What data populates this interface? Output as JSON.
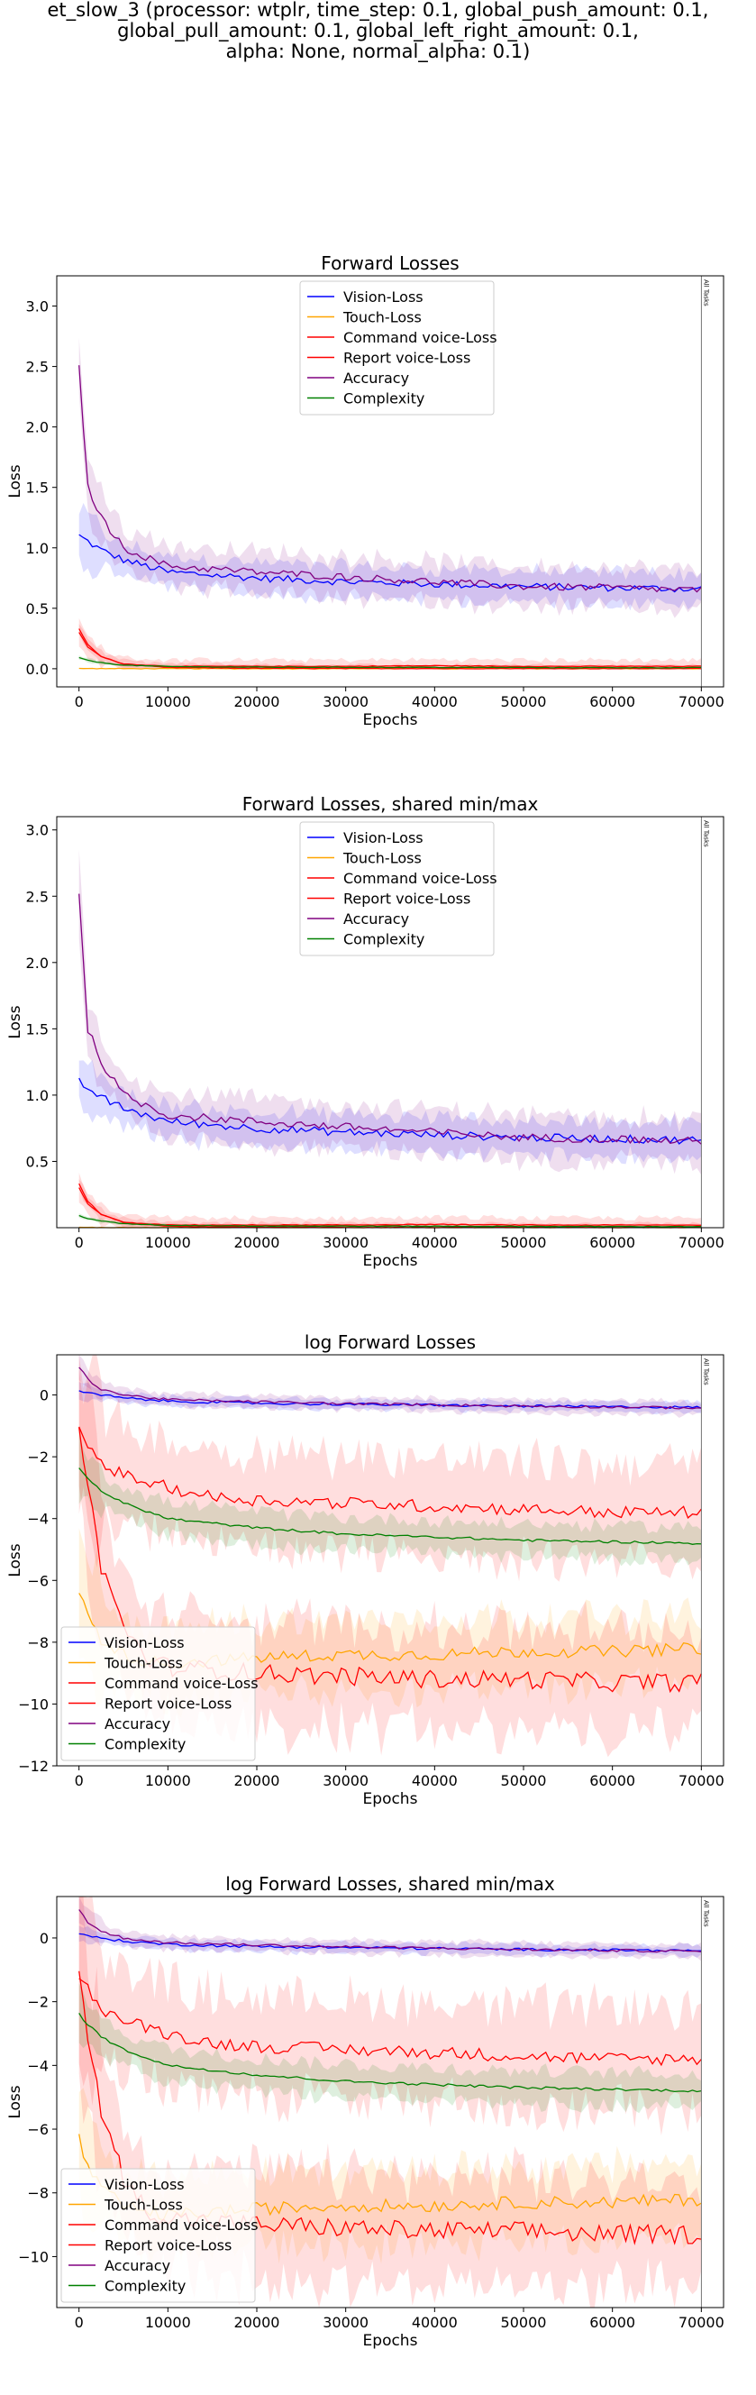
{
  "figure": {
    "title_lines": [
      "et_slow_3 (processor: wtplr, time_step: 0.1, global_push_amount: 0.1,",
      "global_pull_amount: 0.1, global_left_right_amount: 0.1,",
      "alpha: None, normal_alpha: 0.1)"
    ]
  },
  "colors": {
    "Vision-Loss": "#0000ff",
    "Touch-Loss": "#ffa500",
    "Command voice-Loss": "#ff0000",
    "Report voice-Loss": "#ff0000",
    "Accuracy": "#800080",
    "Complexity": "#008000"
  },
  "chart_data": [
    {
      "type": "line",
      "title": "Forward Losses",
      "xlabel": "Epochs",
      "ylabel": "Loss",
      "xlim": [
        -2500,
        72500
      ],
      "ylim": [
        -0.15,
        3.25
      ],
      "xticks": [
        0,
        10000,
        20000,
        30000,
        40000,
        50000,
        60000,
        70000
      ],
      "yticks": [
        0.0,
        0.5,
        1.0,
        1.5,
        2.0,
        2.5,
        3.0
      ],
      "ytick_labels": [
        "0.0",
        "0.5",
        "1.0",
        "1.5",
        "2.0",
        "2.5",
        "3.0"
      ],
      "vline": {
        "x": 70000,
        "label": "All Tasks"
      },
      "legend_position": "top-center",
      "grid": false,
      "series": [
        {
          "name": "Vision-Loss",
          "x": [
            0,
            2500,
            5000,
            10000,
            20000,
            30000,
            40000,
            50000,
            60000,
            70000
          ],
          "y": [
            1.1,
            0.98,
            0.9,
            0.8,
            0.75,
            0.72,
            0.7,
            0.68,
            0.67,
            0.66
          ]
        },
        {
          "name": "Touch-Loss",
          "x": [
            0,
            5000,
            10000,
            20000,
            30000,
            40000,
            50000,
            60000,
            70000
          ],
          "y": [
            0.002,
            0.001,
            0.0005,
            0.0003,
            0.0003,
            0.0003,
            0.0003,
            0.0003,
            0.0003
          ]
        },
        {
          "name": "Command voice-Loss",
          "x": [
            0,
            1000,
            2500,
            5000,
            10000,
            20000,
            30000,
            40000,
            50000,
            60000,
            70000
          ],
          "y": [
            0.33,
            0.2,
            0.1,
            0.04,
            0.01,
            0.004,
            0.002,
            0.0015,
            0.0012,
            0.0012,
            0.0012
          ]
        },
        {
          "name": "Report voice-Loss",
          "x": [
            0,
            1000,
            2500,
            5000,
            10000,
            20000,
            30000,
            40000,
            50000,
            60000,
            70000
          ],
          "y": [
            0.3,
            0.18,
            0.1,
            0.04,
            0.02,
            0.02,
            0.02,
            0.025,
            0.02,
            0.02,
            0.02
          ]
        },
        {
          "name": "Accuracy",
          "x": [
            0,
            1000,
            2500,
            5000,
            10000,
            20000,
            30000,
            40000,
            50000,
            60000,
            70000
          ],
          "y": [
            2.5,
            1.5,
            1.25,
            1.0,
            0.85,
            0.8,
            0.76,
            0.72,
            0.68,
            0.67,
            0.65
          ]
        },
        {
          "name": "Complexity",
          "x": [
            0,
            1000,
            2500,
            5000,
            10000,
            20000,
            30000,
            40000,
            50000,
            60000,
            70000
          ],
          "y": [
            0.09,
            0.07,
            0.05,
            0.03,
            0.018,
            0.013,
            0.012,
            0.011,
            0.01,
            0.009,
            0.009
          ]
        }
      ]
    },
    {
      "type": "line",
      "title": "Forward Losses, shared min/max",
      "xlabel": "Epochs",
      "ylabel": "Loss",
      "xlim": [
        -2500,
        72500
      ],
      "ylim": [
        0.0,
        3.1
      ],
      "xticks": [
        0,
        10000,
        20000,
        30000,
        40000,
        50000,
        60000,
        70000
      ],
      "yticks": [
        0.5,
        1.0,
        1.5,
        2.0,
        2.5,
        3.0
      ],
      "ytick_labels": [
        "0.5",
        "1.0",
        "1.5",
        "2.0",
        "2.5",
        "3.0"
      ],
      "vline": {
        "x": 70000,
        "label": "All Tasks"
      },
      "legend_position": "top-center",
      "grid": false,
      "series": [
        {
          "name": "Vision-Loss",
          "x": [
            0,
            2500,
            5000,
            10000,
            20000,
            30000,
            40000,
            50000,
            60000,
            70000
          ],
          "y": [
            1.1,
            0.98,
            0.9,
            0.8,
            0.75,
            0.72,
            0.7,
            0.68,
            0.67,
            0.66
          ]
        },
        {
          "name": "Touch-Loss",
          "x": [
            0,
            5000,
            10000,
            20000,
            30000,
            40000,
            50000,
            60000,
            70000
          ],
          "y": [
            0.002,
            0.001,
            0.0005,
            0.0003,
            0.0003,
            0.0003,
            0.0003,
            0.0003,
            0.0003
          ]
        },
        {
          "name": "Command voice-Loss",
          "x": [
            0,
            1000,
            2500,
            5000,
            10000,
            20000,
            30000,
            40000,
            50000,
            60000,
            70000
          ],
          "y": [
            0.33,
            0.2,
            0.1,
            0.04,
            0.01,
            0.004,
            0.002,
            0.0015,
            0.0012,
            0.0012,
            0.0012
          ]
        },
        {
          "name": "Report voice-Loss",
          "x": [
            0,
            1000,
            2500,
            5000,
            10000,
            20000,
            30000,
            40000,
            50000,
            60000,
            70000
          ],
          "y": [
            0.3,
            0.18,
            0.1,
            0.04,
            0.02,
            0.02,
            0.02,
            0.025,
            0.02,
            0.02,
            0.02
          ]
        },
        {
          "name": "Accuracy",
          "x": [
            0,
            1000,
            2500,
            5000,
            10000,
            20000,
            30000,
            40000,
            50000,
            60000,
            70000
          ],
          "y": [
            2.5,
            1.5,
            1.25,
            1.0,
            0.85,
            0.8,
            0.76,
            0.72,
            0.68,
            0.67,
            0.65
          ]
        },
        {
          "name": "Complexity",
          "x": [
            0,
            1000,
            2500,
            5000,
            10000,
            20000,
            30000,
            40000,
            50000,
            60000,
            70000
          ],
          "y": [
            0.09,
            0.07,
            0.05,
            0.03,
            0.018,
            0.013,
            0.012,
            0.011,
            0.01,
            0.009,
            0.009
          ]
        }
      ]
    },
    {
      "type": "line",
      "title": "log Forward Losses",
      "xlabel": "Epochs",
      "ylabel": "Loss",
      "xlim": [
        -2500,
        72500
      ],
      "ylim": [
        -12.0,
        1.3
      ],
      "xticks": [
        0,
        10000,
        20000,
        30000,
        40000,
        50000,
        60000,
        70000
      ],
      "yticks": [
        -12,
        -10,
        -8,
        -6,
        -4,
        -2,
        0
      ],
      "ytick_labels": [
        "−12",
        "−10",
        "−8",
        "−6",
        "−4",
        "−2",
        "0"
      ],
      "vline": {
        "x": 70000,
        "label": "All Tasks"
      },
      "legend_position": "bottom-left",
      "grid": false,
      "series": [
        {
          "name": "Vision-Loss",
          "x": [
            0,
            2500,
            5000,
            10000,
            20000,
            30000,
            40000,
            50000,
            60000,
            70000
          ],
          "y": [
            0.1,
            0.0,
            -0.1,
            -0.2,
            -0.27,
            -0.3,
            -0.33,
            -0.36,
            -0.38,
            -0.4
          ]
        },
        {
          "name": "Touch-Loss",
          "x": [
            0,
            1000,
            2500,
            5000,
            7500,
            10000,
            20000,
            30000,
            40000,
            50000,
            60000,
            70000
          ],
          "y": [
            -6.3,
            -7.2,
            -7.9,
            -8.4,
            -8.6,
            -8.7,
            -8.5,
            -8.4,
            -8.4,
            -8.3,
            -8.3,
            -8.2
          ]
        },
        {
          "name": "Command voice-Loss",
          "x": [
            0,
            1000,
            2500,
            5000,
            7500,
            10000,
            20000,
            30000,
            40000,
            50000,
            60000,
            70000
          ],
          "y": [
            -1.1,
            -3.0,
            -5.5,
            -7.5,
            -8.5,
            -8.8,
            -9.0,
            -9.1,
            -9.2,
            -9.2,
            -9.3,
            -9.3
          ]
        },
        {
          "name": "Report voice-Loss",
          "x": [
            0,
            1000,
            2500,
            5000,
            10000,
            15000,
            20000,
            30000,
            40000,
            50000,
            60000,
            70000
          ],
          "y": [
            -1.1,
            -1.6,
            -2.2,
            -2.6,
            -3.0,
            -3.3,
            -3.4,
            -3.5,
            -3.6,
            -3.7,
            -3.8,
            -3.8
          ]
        },
        {
          "name": "Accuracy",
          "x": [
            0,
            1000,
            2500,
            5000,
            10000,
            20000,
            30000,
            40000,
            50000,
            60000,
            70000
          ],
          "y": [
            0.9,
            0.5,
            0.2,
            0.0,
            -0.15,
            -0.22,
            -0.28,
            -0.32,
            -0.36,
            -0.39,
            -0.42
          ]
        },
        {
          "name": "Complexity",
          "x": [
            0,
            1000,
            2500,
            5000,
            10000,
            20000,
            30000,
            40000,
            50000,
            60000,
            70000
          ],
          "y": [
            -2.4,
            -2.7,
            -3.1,
            -3.5,
            -4.0,
            -4.3,
            -4.5,
            -4.6,
            -4.7,
            -4.75,
            -4.8
          ]
        }
      ]
    },
    {
      "type": "line",
      "title": "log Forward Losses, shared min/max",
      "xlabel": "Epochs",
      "ylabel": "Loss",
      "xlim": [
        -2500,
        72500
      ],
      "ylim": [
        -11.6,
        1.3
      ],
      "xticks": [
        0,
        10000,
        20000,
        30000,
        40000,
        50000,
        60000,
        70000
      ],
      "yticks": [
        -10,
        -8,
        -6,
        -4,
        -2,
        0
      ],
      "ytick_labels": [
        "−10",
        "−8",
        "−6",
        "−4",
        "−2",
        "0"
      ],
      "vline": {
        "x": 70000,
        "label": "All Tasks"
      },
      "legend_position": "bottom-left",
      "grid": false,
      "series": [
        {
          "name": "Vision-Loss",
          "x": [
            0,
            2500,
            5000,
            10000,
            20000,
            30000,
            40000,
            50000,
            60000,
            70000
          ],
          "y": [
            0.1,
            0.0,
            -0.1,
            -0.2,
            -0.27,
            -0.3,
            -0.33,
            -0.36,
            -0.38,
            -0.4
          ]
        },
        {
          "name": "Touch-Loss",
          "x": [
            0,
            1000,
            2500,
            5000,
            7500,
            10000,
            20000,
            30000,
            40000,
            50000,
            60000,
            70000
          ],
          "y": [
            -6.3,
            -7.2,
            -7.9,
            -8.4,
            -8.6,
            -8.7,
            -8.5,
            -8.4,
            -8.4,
            -8.3,
            -8.3,
            -8.2
          ]
        },
        {
          "name": "Command voice-Loss",
          "x": [
            0,
            1000,
            2500,
            5000,
            7500,
            10000,
            20000,
            30000,
            40000,
            50000,
            60000,
            70000
          ],
          "y": [
            -1.1,
            -3.0,
            -5.5,
            -7.5,
            -8.5,
            -8.8,
            -9.0,
            -9.1,
            -9.2,
            -9.2,
            -9.3,
            -9.3
          ]
        },
        {
          "name": "Report voice-Loss",
          "x": [
            0,
            1000,
            2500,
            5000,
            10000,
            15000,
            20000,
            30000,
            40000,
            50000,
            60000,
            70000
          ],
          "y": [
            -1.1,
            -1.6,
            -2.2,
            -2.6,
            -3.0,
            -3.3,
            -3.4,
            -3.5,
            -3.6,
            -3.7,
            -3.8,
            -3.8
          ]
        },
        {
          "name": "Accuracy",
          "x": [
            0,
            1000,
            2500,
            5000,
            10000,
            20000,
            30000,
            40000,
            50000,
            60000,
            70000
          ],
          "y": [
            0.9,
            0.5,
            0.2,
            0.0,
            -0.15,
            -0.22,
            -0.28,
            -0.32,
            -0.36,
            -0.39,
            -0.42
          ]
        },
        {
          "name": "Complexity",
          "x": [
            0,
            1000,
            2500,
            5000,
            10000,
            20000,
            30000,
            40000,
            50000,
            60000,
            70000
          ],
          "y": [
            -2.4,
            -2.7,
            -3.1,
            -3.5,
            -4.0,
            -4.3,
            -4.5,
            -4.6,
            -4.7,
            -4.75,
            -4.8
          ]
        }
      ]
    }
  ]
}
